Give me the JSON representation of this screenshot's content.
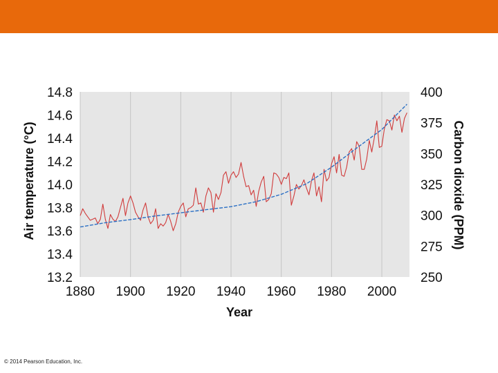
{
  "slide": {
    "banner_color": "#e8690b",
    "copyright": "© 2014 Pearson Education, Inc."
  },
  "chart_data": {
    "type": "line",
    "title": "",
    "xlabel": "Year",
    "ylabel": "Air temperature (°C)",
    "y2label": "Carbon dioxide (PPM)",
    "xlim": [
      1880,
      2011
    ],
    "ylim": [
      13.2,
      14.8
    ],
    "y2lim": [
      250,
      400
    ],
    "xticks": [
      "1880",
      "1900",
      "1920",
      "1940",
      "1960",
      "1980",
      "2000"
    ],
    "yticks": [
      "14.8",
      "14.6",
      "14.4",
      "14.2",
      "14.0",
      "13.8",
      "13.6",
      "13.4",
      "13.2"
    ],
    "y2ticks": [
      "400",
      "375",
      "350",
      "325",
      "300",
      "275",
      "250"
    ],
    "background": "#e6e6e6",
    "grid": "vertical",
    "series": [
      {
        "name": "Air temperature",
        "axis": "left",
        "color": "#d03a3a",
        "x": [
          1880,
          1881,
          1882,
          1883,
          1884,
          1885,
          1886,
          1887,
          1888,
          1889,
          1890,
          1891,
          1892,
          1893,
          1894,
          1895,
          1896,
          1897,
          1898,
          1899,
          1900,
          1901,
          1902,
          1903,
          1904,
          1905,
          1906,
          1907,
          1908,
          1909,
          1910,
          1911,
          1912,
          1913,
          1914,
          1915,
          1916,
          1917,
          1918,
          1919,
          1920,
          1921,
          1922,
          1923,
          1924,
          1925,
          1926,
          1927,
          1928,
          1929,
          1930,
          1931,
          1932,
          1933,
          1934,
          1935,
          1936,
          1937,
          1938,
          1939,
          1940,
          1941,
          1942,
          1943,
          1944,
          1945,
          1946,
          1947,
          1948,
          1949,
          1950,
          1951,
          1952,
          1953,
          1954,
          1955,
          1956,
          1957,
          1958,
          1959,
          1960,
          1961,
          1962,
          1963,
          1964,
          1965,
          1966,
          1967,
          1968,
          1969,
          1970,
          1971,
          1972,
          1973,
          1974,
          1975,
          1976,
          1977,
          1978,
          1979,
          1980,
          1981,
          1982,
          1983,
          1984,
          1985,
          1986,
          1987,
          1988,
          1989,
          1990,
          1991,
          1992,
          1993,
          1994,
          1995,
          1996,
          1997,
          1998,
          1999,
          2000,
          2001,
          2002,
          2003,
          2004,
          2005,
          2006,
          2007,
          2008,
          2009,
          2010
        ],
        "values": [
          13.73,
          13.79,
          13.75,
          13.72,
          13.69,
          13.7,
          13.71,
          13.66,
          13.7,
          13.83,
          13.7,
          13.62,
          13.74,
          13.7,
          13.68,
          13.72,
          13.8,
          13.88,
          13.73,
          13.84,
          13.9,
          13.84,
          13.76,
          13.72,
          13.69,
          13.78,
          13.84,
          13.72,
          13.66,
          13.69,
          13.79,
          13.62,
          13.66,
          13.64,
          13.67,
          13.74,
          13.68,
          13.6,
          13.66,
          13.76,
          13.81,
          13.84,
          13.72,
          13.79,
          13.8,
          13.82,
          13.97,
          13.83,
          13.84,
          13.76,
          13.9,
          13.97,
          13.93,
          13.76,
          13.92,
          13.87,
          13.93,
          14.08,
          14.11,
          14.01,
          14.08,
          14.11,
          14.06,
          14.09,
          14.19,
          14.07,
          13.98,
          13.99,
          13.91,
          13.95,
          13.81,
          13.94,
          14.02,
          14.07,
          13.85,
          13.87,
          13.92,
          14.1,
          14.09,
          14.06,
          14.0,
          14.06,
          14.05,
          14.1,
          13.82,
          13.9,
          14.0,
          13.96,
          13.99,
          14.04,
          13.97,
          13.91,
          14.03,
          14.1,
          13.9,
          13.98,
          13.85,
          14.13,
          14.03,
          14.06,
          14.18,
          14.24,
          14.1,
          14.26,
          14.08,
          14.07,
          14.15,
          14.28,
          14.31,
          14.21,
          14.37,
          14.33,
          14.13,
          14.13,
          14.22,
          14.38,
          14.28,
          14.4,
          14.55,
          14.32,
          14.33,
          14.48,
          14.56,
          14.55,
          14.47,
          14.6,
          14.55,
          14.59,
          14.45,
          14.57,
          14.62
        ]
      },
      {
        "name": "Carbon dioxide",
        "axis": "right",
        "color": "#2a6fc4",
        "x": [
          1880,
          1890,
          1900,
          1910,
          1920,
          1930,
          1940,
          1950,
          1960,
          1970,
          1980,
          1990,
          2000,
          2010
        ],
        "values": [
          290.5,
          294,
          296.5,
          299.5,
          302,
          304.5,
          307,
          311,
          317,
          325.5,
          339,
          354.5,
          369.5,
          390
        ]
      }
    ]
  }
}
